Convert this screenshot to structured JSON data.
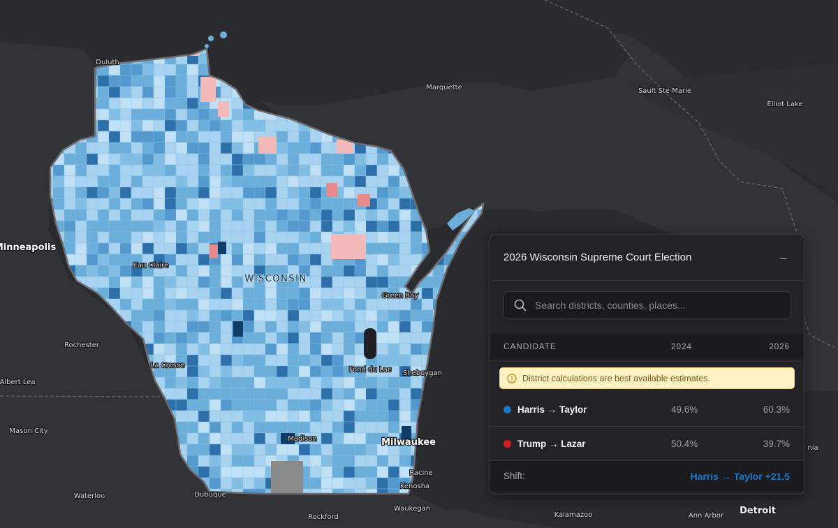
{
  "map": {
    "state_label": "WISCONSIN",
    "colors": {
      "background": "#2a2b2f",
      "land": "#323337",
      "lake": "#2a2b2f",
      "dem_light": "#a8d3f0",
      "dem_mid": "#6aaed9",
      "dem_dark": "#2c6fa9",
      "rep_light": "#f4b9b9",
      "rep_mid": "#e58a8a",
      "no_data": "#8a8a8a"
    },
    "cities": [
      {
        "id": "duluth",
        "name": "Duluth"
      },
      {
        "id": "marquette",
        "name": "Marquette"
      },
      {
        "id": "sault",
        "name": "Sault Ste Marie"
      },
      {
        "id": "elliot",
        "name": "Elliot Lake"
      },
      {
        "id": "minneapolis",
        "name": "Minneapolis"
      },
      {
        "id": "eauclaire",
        "name": "Eau Claire"
      },
      {
        "id": "greenbay",
        "name": "Green Bay"
      },
      {
        "id": "rochester",
        "name": "Rochester"
      },
      {
        "id": "lacrosse",
        "name": "La Crosse"
      },
      {
        "id": "fonddulac",
        "name": "Fond du Lac"
      },
      {
        "id": "sheboygan",
        "name": "Sheboygan"
      },
      {
        "id": "albertlea",
        "name": "Albert Lea"
      },
      {
        "id": "masoncity",
        "name": "Mason City"
      },
      {
        "id": "madison",
        "name": "Madison"
      },
      {
        "id": "milwaukee",
        "name": "Milwaukee"
      },
      {
        "id": "racine",
        "name": "Racine"
      },
      {
        "id": "kenosha",
        "name": "Kenosha"
      },
      {
        "id": "waterloo",
        "name": "Waterloo"
      },
      {
        "id": "dubuque",
        "name": "Dubuque"
      },
      {
        "id": "waukegan",
        "name": "Waukegan"
      },
      {
        "id": "rockford",
        "name": "Rockford"
      },
      {
        "id": "kalamazoo",
        "name": "Kalamazoo"
      },
      {
        "id": "annarbor",
        "name": "Ann Arbor"
      },
      {
        "id": "detroit",
        "name": "Detroit"
      },
      {
        "id": "nia",
        "name": "nia"
      }
    ]
  },
  "panel": {
    "title": "2026 Wisconsin Supreme Court Election",
    "collapse_glyph": "–",
    "search_placeholder": "Search districts, counties, places...",
    "columns": {
      "candidate": "CANDIDATE",
      "y2024": "2024",
      "y2026": "2026"
    },
    "warning": "District calculations are best available estimates.",
    "rows": [
      {
        "name": "Harris → Taylor",
        "v2024": "49.6%",
        "v2026": "60.3%",
        "color": "#1e78c8"
      },
      {
        "name": "Trump → Lazar",
        "v2024": "50.4%",
        "v2026": "39.7%",
        "color": "#d31c1c"
      }
    ],
    "shift_label": "Shift:",
    "shift_value": "Harris → Taylor +21.5",
    "shift_color": "#1e78c8"
  }
}
